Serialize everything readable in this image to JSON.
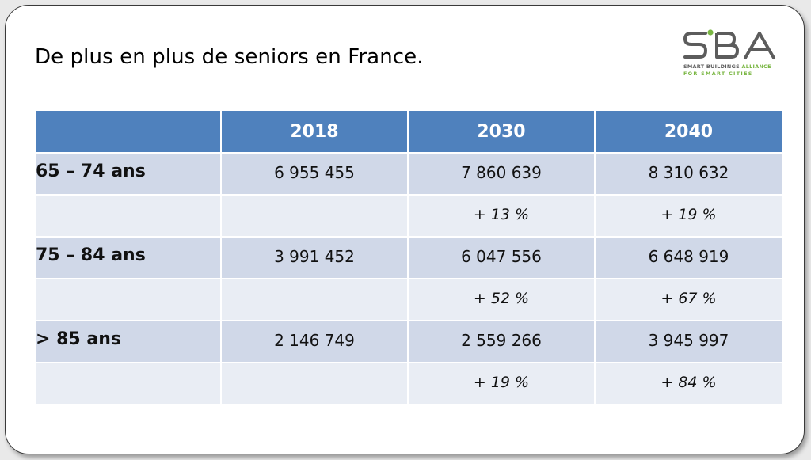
{
  "slide": {
    "title": "De plus en plus de seniors en France."
  },
  "logo": {
    "letters": "SBA",
    "line1_main": "SMART BUILDINGS ",
    "line1_accent": "ALLIANCE",
    "line2": "FOR SMART CITIES",
    "colors": {
      "gray": "#5c5c5c",
      "green": "#79b642"
    }
  },
  "table": {
    "header_color": "#4f81bd",
    "band_color": "#d0d8e8",
    "pct_row_color": "#e9edf4",
    "columns": [
      "",
      "2018",
      "2030",
      "2040"
    ],
    "groups": [
      {
        "label": "65 – 74 ans",
        "values": [
          "6 955 455",
          "7 860 639",
          "8 310 632"
        ],
        "growth": [
          "",
          "+ 13 %",
          "+ 19 %"
        ]
      },
      {
        "label": "75 – 84 ans",
        "values": [
          "3 991 452",
          "6 047 556",
          "6 648 919"
        ],
        "growth": [
          "",
          "+ 52 %",
          "+ 67 %"
        ]
      },
      {
        "label": "> 85 ans",
        "values": [
          "2 146 749",
          "2 559 266",
          "3 945 997"
        ],
        "growth": [
          "",
          "+ 19 %",
          "+ 84 %"
        ]
      }
    ]
  }
}
